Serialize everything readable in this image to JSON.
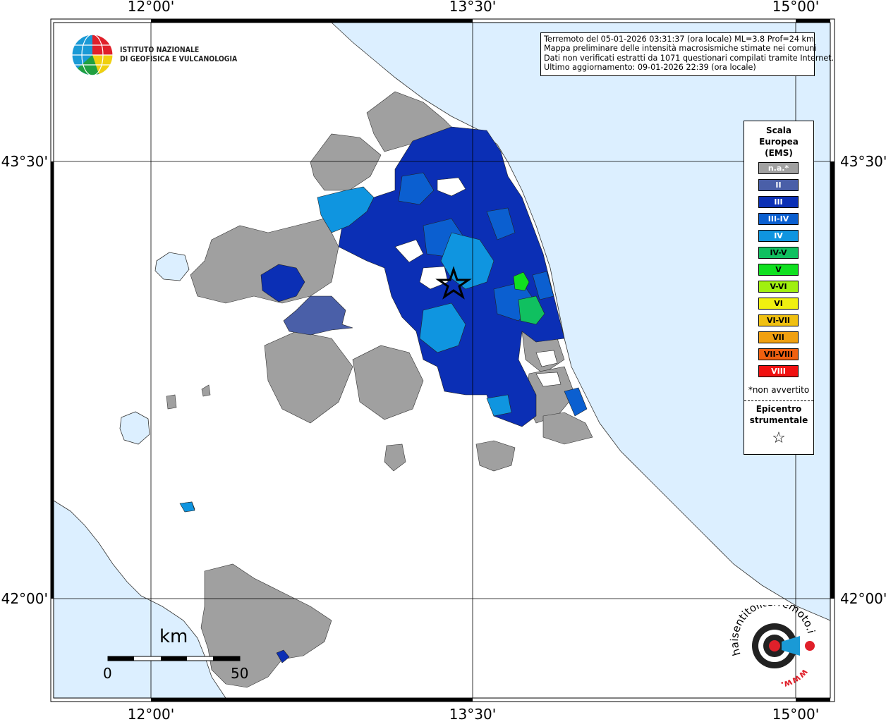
{
  "header": {
    "info_lines": [
      "Terremoto del 05-01-2026 03:31:37 (ora locale) ML=3.8 Prof=24 km",
      "Mappa preliminare delle intensità macrosismiche stimate nei comuni",
      "Dati non verificati estratti da 1071 questionari compilati tramite Internet.",
      "Ultimo aggiornamento: 09-01-2026 22:39 (ora locale)"
    ]
  },
  "logo": {
    "org_line1": "ISTITUTO NAZIONALE",
    "org_line2": "DI GEOFISICA E VULCANOLOGIA",
    "icon": "ingv-globe-logo"
  },
  "axes": {
    "lon_labels": [
      "12°00'",
      "13°30'",
      "15°00'"
    ],
    "lat_labels": [
      "43°30'",
      "42°00'"
    ]
  },
  "legend": {
    "title_lines": [
      "Scala",
      "Europea",
      "(EMS)"
    ],
    "items": [
      {
        "label": "n.a.*",
        "color": "#a0a0a0",
        "text_color": "#ffffff"
      },
      {
        "label": "II",
        "color": "#4a5fa8",
        "text_color": "#ffffff"
      },
      {
        "label": "III",
        "color": "#0b2fb5",
        "text_color": "#ffffff"
      },
      {
        "label": "III-IV",
        "color": "#0b5fd0",
        "text_color": "#ffffff"
      },
      {
        "label": "IV",
        "color": "#0f95e0",
        "text_color": "#ffffff"
      },
      {
        "label": "IV-V",
        "color": "#10c060",
        "text_color": "#000000"
      },
      {
        "label": "V",
        "color": "#10e020",
        "text_color": "#000000"
      },
      {
        "label": "V-VI",
        "color": "#a0f010",
        "text_color": "#000000"
      },
      {
        "label": "VI",
        "color": "#f0f010",
        "text_color": "#000000"
      },
      {
        "label": "VI-VII",
        "color": "#f0c010",
        "text_color": "#000000"
      },
      {
        "label": "VII",
        "color": "#f0a010",
        "text_color": "#000000"
      },
      {
        "label": "VII-VIII",
        "color": "#f06010",
        "text_color": "#000000"
      },
      {
        "label": "VIII",
        "color": "#f01010",
        "text_color": "#ffffff"
      }
    ],
    "note": "*non avvertito",
    "epicenter_lines": [
      "Epicentro",
      "strumentale"
    ],
    "epicenter_symbol": "☆"
  },
  "scale_bar": {
    "unit": "km",
    "start": "0",
    "end": "50"
  },
  "branding": {
    "text": "haisentitoilterremoto.it",
    "www": "www.",
    "icon": "haisentito-target-logo"
  },
  "colors": {
    "sea": "#dcefff",
    "land": "#ffffff",
    "frame": "#000000"
  }
}
